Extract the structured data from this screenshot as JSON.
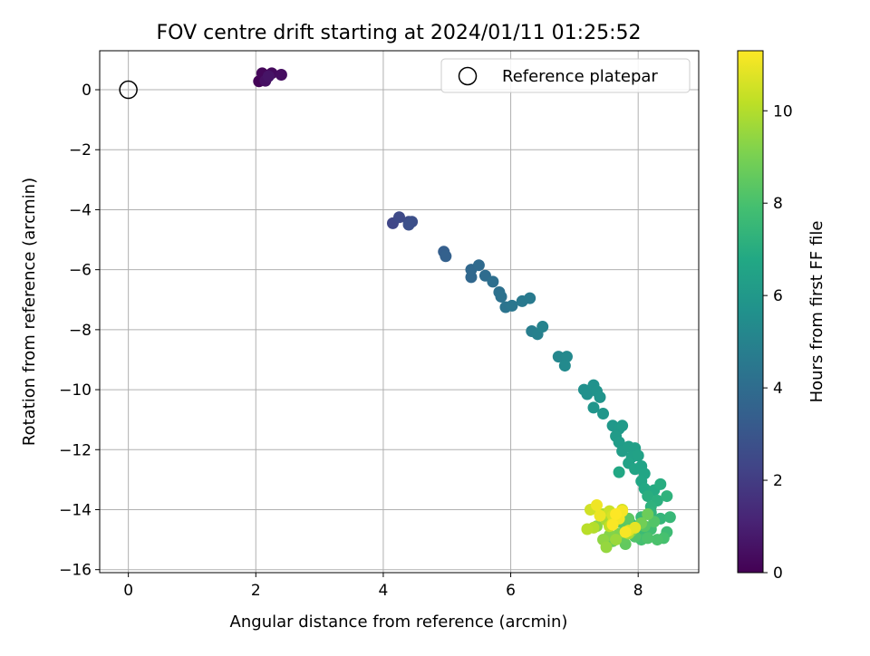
{
  "chart_data": {
    "type": "scatter",
    "title": "FOV centre drift starting at 2024/01/11 01:25:52",
    "xlabel": "Angular distance from reference (arcmin)",
    "ylabel": "Rotation from reference (arcmin)",
    "xlim": [
      -0.45,
      8.95
    ],
    "ylim": [
      -16.1,
      1.3
    ],
    "x_ticks": [
      0,
      2,
      4,
      6,
      8
    ],
    "y_ticks": [
      0,
      -2,
      -4,
      -6,
      -8,
      -10,
      -12,
      -14,
      -16
    ],
    "x_tick_labels": [
      "0",
      "2",
      "4",
      "6",
      "8"
    ],
    "y_tick_labels": [
      "0",
      "−2",
      "−4",
      "−6",
      "−8",
      "−10",
      "−12",
      "−14",
      "−16"
    ],
    "grid": true,
    "legend": {
      "placement": "top-right",
      "entries": [
        "Reference platepar"
      ]
    },
    "reference": {
      "name": "Reference platepar",
      "x": 0,
      "y": 0
    },
    "colorbar": {
      "label": "Hours from first FF file",
      "range": [
        0,
        11.3
      ],
      "ticks": [
        0,
        2,
        4,
        6,
        8,
        10
      ],
      "tick_labels": [
        "0",
        "2",
        "4",
        "6",
        "8",
        "10"
      ],
      "colormap": "viridis"
    },
    "points": [
      [
        2.05,
        0.28,
        0.1
      ],
      [
        2.1,
        0.55,
        0.2
      ],
      [
        2.25,
        0.55,
        0.3
      ],
      [
        2.4,
        0.5,
        0.4
      ],
      [
        2.15,
        0.3,
        0.5
      ],
      [
        2.2,
        0.45,
        0.6
      ],
      [
        4.15,
        -4.45,
        2.4
      ],
      [
        4.25,
        -4.25,
        2.5
      ],
      [
        4.4,
        -4.4,
        2.6
      ],
      [
        4.45,
        -4.4,
        2.7
      ],
      [
        4.4,
        -4.5,
        2.75
      ],
      [
        4.95,
        -5.4,
        3.4
      ],
      [
        4.98,
        -5.55,
        3.5
      ],
      [
        5.38,
        -6.25,
        3.75
      ],
      [
        5.38,
        -6.0,
        3.8
      ],
      [
        5.5,
        -5.85,
        3.9
      ],
      [
        5.6,
        -6.2,
        4.0
      ],
      [
        5.72,
        -6.4,
        4.1
      ],
      [
        5.82,
        -6.75,
        4.2
      ],
      [
        5.85,
        -6.9,
        4.25
      ],
      [
        5.92,
        -7.25,
        4.35
      ],
      [
        6.02,
        -7.2,
        4.45
      ],
      [
        6.18,
        -7.05,
        4.55
      ],
      [
        6.3,
        -6.95,
        4.6
      ],
      [
        6.33,
        -8.05,
        4.8
      ],
      [
        6.42,
        -8.15,
        4.9
      ],
      [
        6.5,
        -7.9,
        5.0
      ],
      [
        6.75,
        -8.9,
        5.2
      ],
      [
        6.88,
        -8.9,
        5.3
      ],
      [
        6.85,
        -9.2,
        5.35
      ],
      [
        7.15,
        -10.0,
        5.6
      ],
      [
        7.2,
        -10.15,
        5.65
      ],
      [
        7.3,
        -9.85,
        5.7
      ],
      [
        7.35,
        -10.05,
        5.75
      ],
      [
        7.4,
        -10.25,
        5.8
      ],
      [
        7.3,
        -10.6,
        5.85
      ],
      [
        7.45,
        -10.8,
        5.9
      ],
      [
        7.6,
        -11.2,
        6.0
      ],
      [
        7.7,
        -11.3,
        6.05
      ],
      [
        7.75,
        -11.2,
        6.1
      ],
      [
        7.65,
        -11.55,
        6.15
      ],
      [
        7.7,
        -11.75,
        6.2
      ],
      [
        7.75,
        -12.05,
        6.25
      ],
      [
        7.85,
        -11.9,
        6.3
      ],
      [
        7.95,
        -11.95,
        6.35
      ],
      [
        7.9,
        -12.25,
        6.4
      ],
      [
        8.0,
        -12.2,
        6.45
      ],
      [
        7.85,
        -12.45,
        6.5
      ],
      [
        8.05,
        -12.55,
        6.55
      ],
      [
        7.95,
        -12.65,
        6.6
      ],
      [
        8.1,
        -12.8,
        6.65
      ],
      [
        8.05,
        -13.05,
        6.7
      ],
      [
        7.7,
        -12.75,
        6.75
      ],
      [
        8.1,
        -13.3,
        6.8
      ],
      [
        8.25,
        -13.35,
        6.9
      ],
      [
        8.35,
        -13.15,
        7.0
      ],
      [
        8.15,
        -13.55,
        7.05
      ],
      [
        8.3,
        -13.7,
        7.1
      ],
      [
        8.2,
        -13.9,
        7.2
      ],
      [
        8.45,
        -13.55,
        7.25
      ],
      [
        8.2,
        -14.1,
        7.3
      ],
      [
        8.35,
        -14.3,
        7.4
      ],
      [
        8.5,
        -14.25,
        7.5
      ],
      [
        8.05,
        -14.25,
        7.55
      ],
      [
        7.9,
        -14.5,
        7.6
      ],
      [
        8.1,
        -14.75,
        7.65
      ],
      [
        8.45,
        -14.75,
        7.7
      ],
      [
        8.2,
        -14.65,
        7.8
      ],
      [
        8.05,
        -15.0,
        7.9
      ],
      [
        8.4,
        -14.95,
        7.95
      ],
      [
        8.3,
        -15.0,
        8.05
      ],
      [
        8.15,
        -14.95,
        8.1
      ],
      [
        7.95,
        -14.9,
        8.15
      ],
      [
        8.25,
        -14.4,
        8.2
      ],
      [
        8.1,
        -14.55,
        8.3
      ],
      [
        7.7,
        -14.4,
        8.35
      ],
      [
        7.8,
        -14.6,
        8.4
      ],
      [
        7.85,
        -14.3,
        8.45
      ],
      [
        7.8,
        -15.15,
        8.55
      ],
      [
        7.75,
        -14.95,
        8.6
      ],
      [
        7.6,
        -15.05,
        8.65
      ],
      [
        8.15,
        -14.15,
        8.75
      ],
      [
        8.05,
        -14.45,
        8.85
      ],
      [
        7.9,
        -14.7,
        9.0
      ],
      [
        7.7,
        -14.8,
        9.1
      ],
      [
        7.55,
        -14.85,
        9.2
      ],
      [
        7.35,
        -14.55,
        9.3
      ],
      [
        7.45,
        -15.0,
        9.4
      ],
      [
        7.5,
        -15.25,
        9.5
      ],
      [
        7.65,
        -15.0,
        9.6
      ],
      [
        7.85,
        -14.8,
        9.7
      ],
      [
        7.5,
        -14.35,
        9.8
      ],
      [
        7.45,
        -14.15,
        9.9
      ],
      [
        7.3,
        -14.6,
        10.0
      ],
      [
        7.2,
        -14.65,
        10.1
      ],
      [
        7.55,
        -14.55,
        10.2
      ],
      [
        7.7,
        -14.15,
        10.3
      ],
      [
        7.55,
        -14.05,
        10.4
      ],
      [
        7.25,
        -14.0,
        10.5
      ],
      [
        7.6,
        -14.2,
        10.55
      ],
      [
        7.75,
        -14.0,
        10.6
      ],
      [
        7.6,
        -14.45,
        10.7
      ],
      [
        7.85,
        -14.7,
        10.8
      ],
      [
        7.95,
        -14.6,
        10.9
      ],
      [
        7.4,
        -14.2,
        11.0
      ],
      [
        7.35,
        -13.85,
        11.05
      ],
      [
        7.7,
        -14.3,
        11.1
      ],
      [
        7.75,
        -14.05,
        11.15
      ],
      [
        7.8,
        -14.75,
        11.2
      ],
      [
        7.6,
        -14.5,
        11.25
      ],
      [
        7.65,
        -14.15,
        11.3
      ]
    ]
  }
}
